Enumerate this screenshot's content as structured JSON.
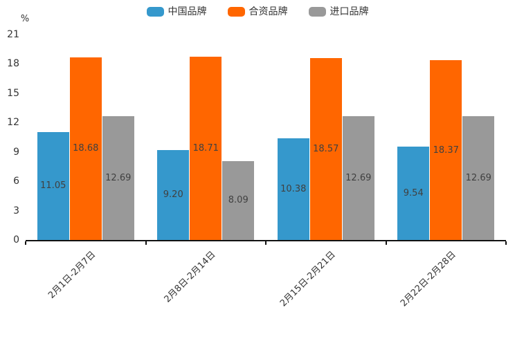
{
  "chart_data": {
    "type": "bar",
    "title": "",
    "unit_label": "%",
    "categories": [
      "2月1日-2月7日",
      "2月8日-2月14日",
      "2月15日-2月21日",
      "2月22日-2月28日"
    ],
    "series": [
      {
        "name": "中国品牌",
        "color": "#3598cc",
        "values": [
          11.05,
          9.2,
          10.38,
          9.54
        ],
        "value_labels": [
          "11.05",
          "9.20",
          "10.38",
          "9.54"
        ]
      },
      {
        "name": "合资品牌",
        "color": "#ff6600",
        "values": [
          18.68,
          18.71,
          18.57,
          18.37
        ],
        "value_labels": [
          "18.68",
          "18.71",
          "18.57",
          "18.37"
        ]
      },
      {
        "name": "进口品牌",
        "color": "#999999",
        "values": [
          12.69,
          8.09,
          12.69,
          12.69
        ],
        "value_labels": [
          "12.69",
          "8.09",
          "12.69",
          "12.69"
        ]
      }
    ],
    "ylim": [
      0,
      21
    ],
    "yticks": [
      0,
      3,
      6,
      9,
      12,
      15,
      18,
      21
    ],
    "grid": false,
    "legend_position": "top-center",
    "value_labels_position": "inside-center",
    "colors": {
      "axis_line": "#111111",
      "axis_text": "#333333",
      "value_label_text": "#404040",
      "background": "#ffffff"
    }
  }
}
